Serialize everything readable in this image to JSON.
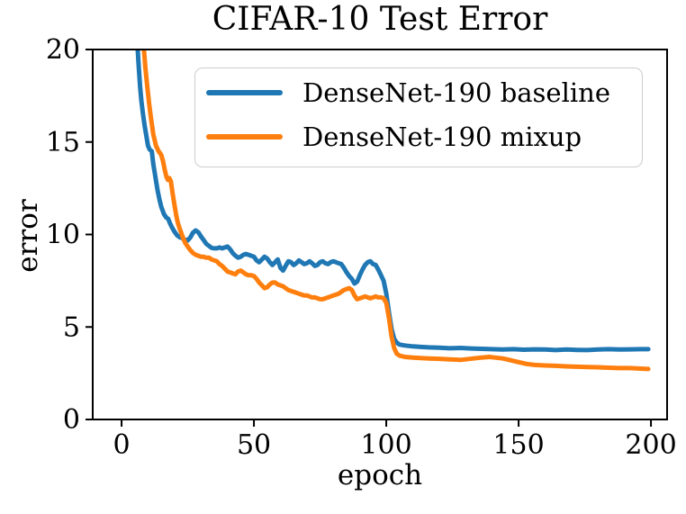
{
  "figure": {
    "title": "CIFAR-10 Test Error",
    "xlabel": "epoch",
    "ylabel": "error"
  },
  "chart_data": {
    "type": "line",
    "title": "CIFAR-10 Test Error",
    "xlabel": "epoch",
    "ylabel": "error",
    "xlim": [
      -10.9,
      206.1
    ],
    "ylim": [
      0,
      20
    ],
    "x_ticks": [
      "0",
      "50",
      "100",
      "150",
      "200"
    ],
    "x_tick_values": [
      0,
      50,
      100,
      150,
      200
    ],
    "y_ticks": [
      "0",
      "5",
      "10",
      "15",
      "20"
    ],
    "y_tick_values": [
      0,
      5,
      10,
      15,
      20
    ],
    "grid": false,
    "legend_position": "upper right",
    "axis_color": "#000000",
    "legend_border_color": "#cccccc",
    "series": [
      {
        "name": "DenseNet-190 baseline",
        "color": "#1f77b4",
        "points": [
          [
            5.4,
            21.5
          ],
          [
            6,
            20.2
          ],
          [
            6.5,
            19.0
          ],
          [
            7,
            18.0
          ],
          [
            7.5,
            17.2
          ],
          [
            8,
            16.6
          ],
          [
            8.7,
            15.9
          ],
          [
            9.5,
            15.2
          ],
          [
            10,
            14.8
          ],
          [
            10.6,
            14.6
          ],
          [
            11.4,
            14.5
          ],
          [
            12,
            13.8
          ],
          [
            13,
            12.9
          ],
          [
            13.6,
            12.4
          ],
          [
            14.3,
            11.9
          ],
          [
            15,
            11.5
          ],
          [
            16,
            11.1
          ],
          [
            17,
            10.9
          ],
          [
            17.6,
            10.85
          ],
          [
            18.3,
            10.6
          ],
          [
            19,
            10.4
          ],
          [
            20,
            10.15
          ],
          [
            21,
            9.95
          ],
          [
            22,
            9.85
          ],
          [
            23,
            9.8
          ],
          [
            24,
            9.72
          ],
          [
            25,
            9.68
          ],
          [
            26,
            9.85
          ],
          [
            27,
            10.1
          ],
          [
            28,
            10.22
          ],
          [
            29,
            10.12
          ],
          [
            30,
            9.9
          ],
          [
            31,
            9.7
          ],
          [
            32,
            9.5
          ],
          [
            33,
            9.38
          ],
          [
            34,
            9.28
          ],
          [
            35,
            9.25
          ],
          [
            36,
            9.25
          ],
          [
            37,
            9.3
          ],
          [
            38,
            9.25
          ],
          [
            39,
            9.3
          ],
          [
            40,
            9.35
          ],
          [
            41,
            9.2
          ],
          [
            42,
            9.0
          ],
          [
            43,
            8.85
          ],
          [
            44,
            8.75
          ],
          [
            45,
            8.8
          ],
          [
            46,
            8.9
          ],
          [
            47,
            8.95
          ],
          [
            48,
            8.9
          ],
          [
            49,
            8.85
          ],
          [
            50,
            8.8
          ],
          [
            51,
            8.6
          ],
          [
            52,
            8.5
          ],
          [
            53,
            8.65
          ],
          [
            54,
            8.8
          ],
          [
            55,
            8.7
          ],
          [
            56,
            8.5
          ],
          [
            57,
            8.35
          ],
          [
            58,
            8.5
          ],
          [
            59,
            8.65
          ],
          [
            60,
            8.2
          ],
          [
            61,
            8.05
          ],
          [
            62,
            8.3
          ],
          [
            63,
            8.55
          ],
          [
            64,
            8.5
          ],
          [
            65,
            8.35
          ],
          [
            66,
            8.45
          ],
          [
            67,
            8.6
          ],
          [
            68,
            8.5
          ],
          [
            69,
            8.4
          ],
          [
            70,
            8.45
          ],
          [
            71,
            8.55
          ],
          [
            72,
            8.45
          ],
          [
            73,
            8.3
          ],
          [
            74,
            8.35
          ],
          [
            75,
            8.5
          ],
          [
            76,
            8.55
          ],
          [
            77,
            8.45
          ],
          [
            78,
            8.4
          ],
          [
            79,
            8.5
          ],
          [
            80,
            8.55
          ],
          [
            81,
            8.5
          ],
          [
            82,
            8.45
          ],
          [
            83,
            8.4
          ],
          [
            84,
            8.2
          ],
          [
            85,
            7.95
          ],
          [
            86,
            7.75
          ],
          [
            87,
            7.6
          ],
          [
            88,
            7.35
          ],
          [
            89,
            7.45
          ],
          [
            90,
            7.8
          ],
          [
            91,
            8.1
          ],
          [
            92,
            8.35
          ],
          [
            93,
            8.5
          ],
          [
            94,
            8.55
          ],
          [
            95,
            8.4
          ],
          [
            96,
            8.35
          ],
          [
            97,
            8.1
          ],
          [
            98,
            7.8
          ],
          [
            99,
            7.5
          ],
          [
            100,
            6.8
          ],
          [
            101,
            5.8
          ],
          [
            102,
            4.9
          ],
          [
            103,
            4.35
          ],
          [
            104,
            4.15
          ],
          [
            105,
            4.05
          ],
          [
            107,
            4.0
          ],
          [
            110,
            3.95
          ],
          [
            113,
            3.92
          ],
          [
            116,
            3.9
          ],
          [
            120,
            3.88
          ],
          [
            124,
            3.85
          ],
          [
            128,
            3.87
          ],
          [
            132,
            3.84
          ],
          [
            136,
            3.82
          ],
          [
            140,
            3.8
          ],
          [
            144,
            3.78
          ],
          [
            148,
            3.8
          ],
          [
            152,
            3.77
          ],
          [
            156,
            3.79
          ],
          [
            160,
            3.78
          ],
          [
            164,
            3.75
          ],
          [
            168,
            3.78
          ],
          [
            172,
            3.76
          ],
          [
            176,
            3.75
          ],
          [
            180,
            3.78
          ],
          [
            184,
            3.8
          ],
          [
            188,
            3.78
          ],
          [
            192,
            3.79
          ],
          [
            196,
            3.8
          ],
          [
            199,
            3.8
          ]
        ]
      },
      {
        "name": "DenseNet-190 mixup",
        "color": "#ff7f0e",
        "points": [
          [
            7.6,
            21.5
          ],
          [
            8.2,
            20.4
          ],
          [
            9,
            19.0
          ],
          [
            9.7,
            18.0
          ],
          [
            10.4,
            17.1
          ],
          [
            11,
            16.4
          ],
          [
            12,
            15.4
          ],
          [
            13,
            14.8
          ],
          [
            14,
            14.5
          ],
          [
            15,
            14.3
          ],
          [
            15.6,
            14.0
          ],
          [
            16.3,
            13.5
          ],
          [
            17,
            13.1
          ],
          [
            17.5,
            12.95
          ],
          [
            18,
            13.05
          ],
          [
            18.6,
            12.9
          ],
          [
            19.3,
            12.2
          ],
          [
            20,
            11.6
          ],
          [
            20.7,
            11.0
          ],
          [
            21.3,
            10.6
          ],
          [
            22,
            10.3
          ],
          [
            23,
            9.9
          ],
          [
            24,
            9.55
          ],
          [
            25,
            9.35
          ],
          [
            26,
            9.15
          ],
          [
            27,
            9.0
          ],
          [
            28,
            8.9
          ],
          [
            29,
            8.85
          ],
          [
            30,
            8.8
          ],
          [
            31,
            8.8
          ],
          [
            32,
            8.75
          ],
          [
            33,
            8.75
          ],
          [
            34,
            8.65
          ],
          [
            35,
            8.6
          ],
          [
            36,
            8.55
          ],
          [
            37,
            8.4
          ],
          [
            38,
            8.3
          ],
          [
            39,
            8.15
          ],
          [
            40,
            8.0
          ],
          [
            41,
            7.95
          ],
          [
            42,
            7.9
          ],
          [
            43,
            7.85
          ],
          [
            44,
            8.0
          ],
          [
            45,
            8.05
          ],
          [
            46,
            7.95
          ],
          [
            47,
            7.85
          ],
          [
            48,
            7.8
          ],
          [
            49,
            7.8
          ],
          [
            50,
            7.75
          ],
          [
            51,
            7.6
          ],
          [
            52,
            7.4
          ],
          [
            53,
            7.25
          ],
          [
            54,
            7.1
          ],
          [
            55,
            7.15
          ],
          [
            56,
            7.3
          ],
          [
            57,
            7.4
          ],
          [
            58,
            7.4
          ],
          [
            59,
            7.3
          ],
          [
            60,
            7.25
          ],
          [
            61,
            7.2
          ],
          [
            62,
            7.1
          ],
          [
            63,
            7.0
          ],
          [
            64,
            6.95
          ],
          [
            65,
            6.9
          ],
          [
            66,
            6.85
          ],
          [
            67,
            6.8
          ],
          [
            68,
            6.75
          ],
          [
            69,
            6.7
          ],
          [
            70,
            6.7
          ],
          [
            71,
            6.65
          ],
          [
            72,
            6.6
          ],
          [
            73,
            6.6
          ],
          [
            74,
            6.55
          ],
          [
            75,
            6.5
          ],
          [
            76,
            6.5
          ],
          [
            77,
            6.55
          ],
          [
            78,
            6.6
          ],
          [
            79,
            6.65
          ],
          [
            80,
            6.7
          ],
          [
            81,
            6.75
          ],
          [
            82,
            6.8
          ],
          [
            83,
            6.9
          ],
          [
            84,
            7.0
          ],
          [
            85,
            7.05
          ],
          [
            86,
            7.1
          ],
          [
            87,
            7.0
          ],
          [
            88,
            6.7
          ],
          [
            89,
            6.5
          ],
          [
            90,
            6.55
          ],
          [
            91,
            6.6
          ],
          [
            92,
            6.65
          ],
          [
            93,
            6.6
          ],
          [
            94,
            6.55
          ],
          [
            95,
            6.6
          ],
          [
            96,
            6.65
          ],
          [
            97,
            6.6
          ],
          [
            98,
            6.6
          ],
          [
            99,
            6.55
          ],
          [
            100,
            6.3
          ],
          [
            101,
            5.5
          ],
          [
            102,
            4.5
          ],
          [
            103,
            3.85
          ],
          [
            104,
            3.55
          ],
          [
            105,
            3.45
          ],
          [
            107,
            3.38
          ],
          [
            110,
            3.35
          ],
          [
            113,
            3.32
          ],
          [
            116,
            3.3
          ],
          [
            120,
            3.28
          ],
          [
            124,
            3.25
          ],
          [
            128,
            3.22
          ],
          [
            130,
            3.25
          ],
          [
            133,
            3.3
          ],
          [
            136,
            3.35
          ],
          [
            139,
            3.38
          ],
          [
            141,
            3.35
          ],
          [
            144,
            3.3
          ],
          [
            147,
            3.2
          ],
          [
            150,
            3.1
          ],
          [
            153,
            3.0
          ],
          [
            156,
            2.95
          ],
          [
            160,
            2.92
          ],
          [
            164,
            2.9
          ],
          [
            168,
            2.87
          ],
          [
            172,
            2.85
          ],
          [
            176,
            2.83
          ],
          [
            180,
            2.82
          ],
          [
            184,
            2.8
          ],
          [
            188,
            2.78
          ],
          [
            192,
            2.78
          ],
          [
            196,
            2.75
          ],
          [
            199,
            2.73
          ]
        ]
      }
    ]
  }
}
